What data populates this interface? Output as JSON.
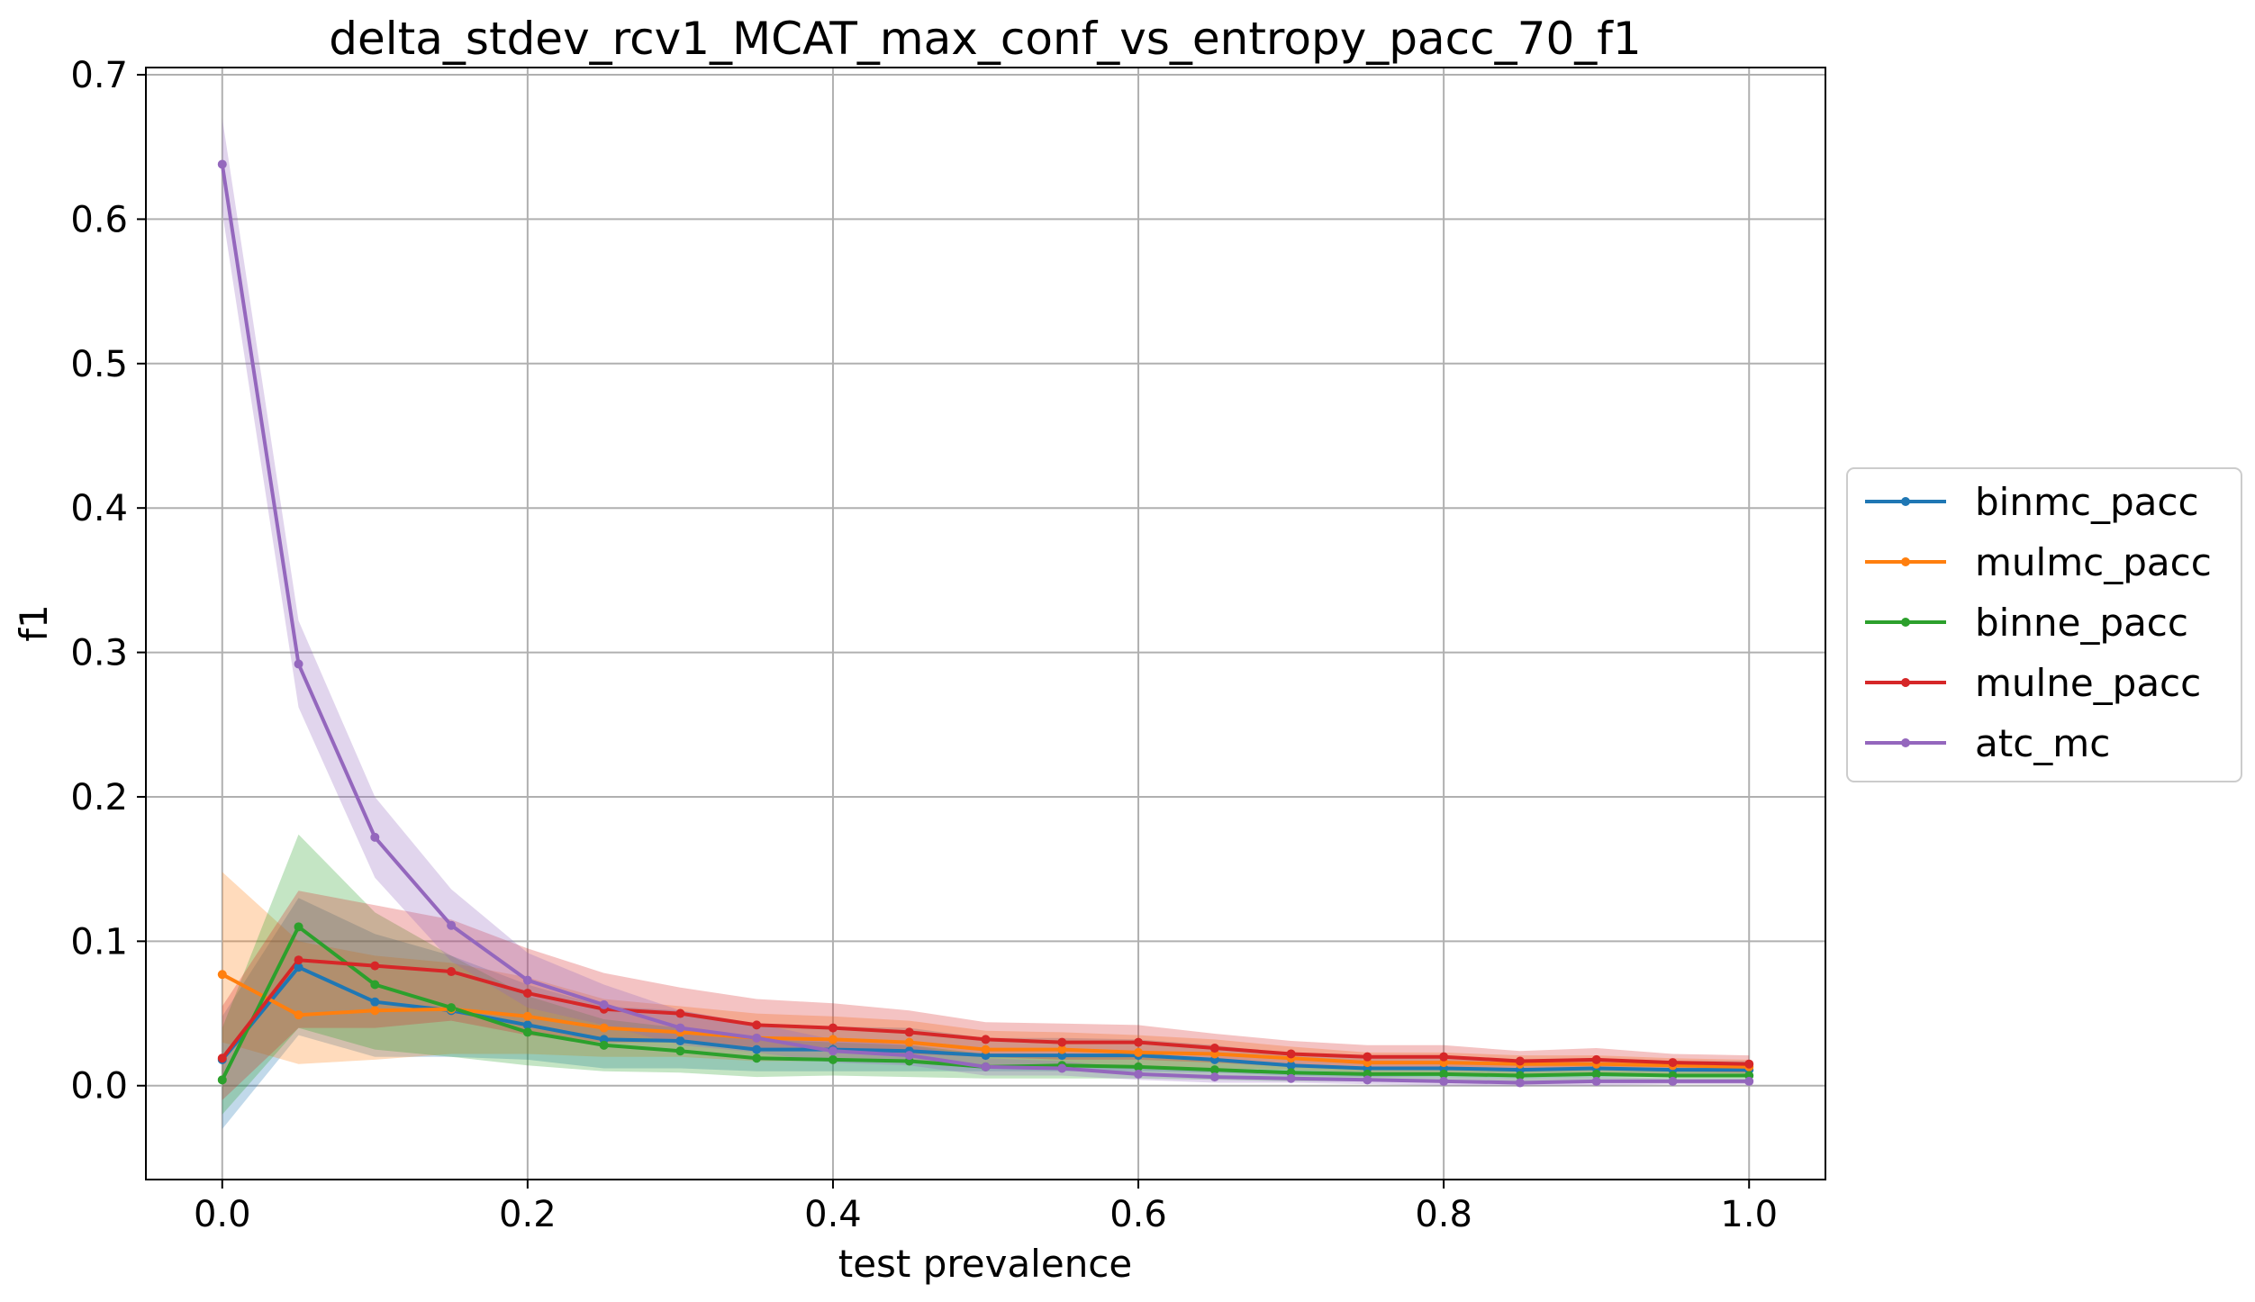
{
  "chart_data": {
    "type": "line",
    "title": "delta_stdev_rcv1_MCAT_max_conf_vs_entropy_pacc_70_f1",
    "xlabel": "test prevalence",
    "ylabel": "f1",
    "xlim": [
      -0.05,
      1.05
    ],
    "ylim": [
      -0.065,
      0.705
    ],
    "xticks": [
      0.0,
      0.2,
      0.4,
      0.6,
      0.8,
      1.0
    ],
    "xtick_labels": [
      "0.0",
      "0.2",
      "0.4",
      "0.6",
      "0.8",
      "1.0"
    ],
    "yticks": [
      0.0,
      0.1,
      0.2,
      0.3,
      0.4,
      0.5,
      0.6,
      0.7
    ],
    "ytick_labels": [
      "0.0",
      "0.1",
      "0.2",
      "0.3",
      "0.4",
      "0.5",
      "0.6",
      "0.7"
    ],
    "grid": true,
    "legend_position": "center-right, outside plot",
    "x": [
      0.0,
      0.05,
      0.1,
      0.15,
      0.2,
      0.25,
      0.3,
      0.35,
      0.4,
      0.45,
      0.5,
      0.55,
      0.6,
      0.65,
      0.7,
      0.75,
      0.8,
      0.85,
      0.9,
      0.95,
      1.0
    ],
    "series": [
      {
        "name": "binmc_pacc",
        "color": "#1f77b4",
        "values": [
          0.018,
          0.082,
          0.058,
          0.052,
          0.042,
          0.032,
          0.031,
          0.025,
          0.025,
          0.024,
          0.021,
          0.021,
          0.021,
          0.018,
          0.014,
          0.012,
          0.012,
          0.011,
          0.012,
          0.011,
          0.011
        ],
        "upper": [
          0.048,
          0.13,
          0.105,
          0.09,
          0.07,
          0.055,
          0.052,
          0.042,
          0.041,
          0.04,
          0.033,
          0.033,
          0.032,
          0.028,
          0.022,
          0.019,
          0.019,
          0.018,
          0.019,
          0.017,
          0.017
        ],
        "lower": [
          -0.03,
          0.035,
          0.02,
          0.02,
          0.018,
          0.012,
          0.012,
          0.01,
          0.01,
          0.01,
          0.01,
          0.01,
          0.01,
          0.009,
          0.007,
          0.006,
          0.006,
          0.005,
          0.006,
          0.006,
          0.006
        ]
      },
      {
        "name": "mulmc_pacc",
        "color": "#ff7f0e",
        "values": [
          0.077,
          0.049,
          0.052,
          0.053,
          0.048,
          0.04,
          0.037,
          0.033,
          0.032,
          0.03,
          0.025,
          0.025,
          0.023,
          0.022,
          0.019,
          0.016,
          0.016,
          0.015,
          0.015,
          0.014,
          0.013
        ],
        "upper": [
          0.148,
          0.1,
          0.09,
          0.085,
          0.075,
          0.06,
          0.055,
          0.05,
          0.048,
          0.045,
          0.038,
          0.037,
          0.035,
          0.032,
          0.027,
          0.023,
          0.023,
          0.021,
          0.021,
          0.019,
          0.018
        ],
        "lower": [
          0.03,
          0.015,
          0.018,
          0.022,
          0.022,
          0.02,
          0.02,
          0.017,
          0.017,
          0.016,
          0.013,
          0.013,
          0.012,
          0.012,
          0.011,
          0.009,
          0.009,
          0.008,
          0.008,
          0.008,
          0.008
        ]
      },
      {
        "name": "binne_pacc",
        "color": "#2ca02c",
        "values": [
          0.004,
          0.11,
          0.07,
          0.054,
          0.037,
          0.028,
          0.024,
          0.019,
          0.018,
          0.017,
          0.013,
          0.014,
          0.013,
          0.011,
          0.009,
          0.008,
          0.008,
          0.007,
          0.008,
          0.007,
          0.007
        ],
        "upper": [
          0.04,
          0.174,
          0.12,
          0.09,
          0.062,
          0.046,
          0.04,
          0.032,
          0.03,
          0.028,
          0.022,
          0.022,
          0.021,
          0.018,
          0.015,
          0.013,
          0.013,
          0.012,
          0.013,
          0.012,
          0.012
        ],
        "lower": [
          -0.02,
          0.04,
          0.025,
          0.02,
          0.014,
          0.01,
          0.009,
          0.006,
          0.007,
          0.006,
          0.005,
          0.005,
          0.005,
          0.004,
          0.003,
          0.003,
          0.003,
          0.003,
          0.003,
          0.003,
          0.003
        ]
      },
      {
        "name": "mulne_pacc",
        "color": "#d62728",
        "values": [
          0.019,
          0.087,
          0.083,
          0.079,
          0.064,
          0.053,
          0.05,
          0.042,
          0.04,
          0.037,
          0.032,
          0.03,
          0.03,
          0.026,
          0.022,
          0.02,
          0.02,
          0.017,
          0.018,
          0.016,
          0.015
        ],
        "upper": [
          0.055,
          0.135,
          0.125,
          0.115,
          0.095,
          0.078,
          0.068,
          0.06,
          0.057,
          0.052,
          0.044,
          0.043,
          0.042,
          0.036,
          0.031,
          0.028,
          0.028,
          0.024,
          0.026,
          0.022,
          0.021
        ],
        "lower": [
          -0.01,
          0.04,
          0.04,
          0.045,
          0.035,
          0.03,
          0.03,
          0.024,
          0.024,
          0.022,
          0.02,
          0.018,
          0.018,
          0.016,
          0.013,
          0.012,
          0.012,
          0.01,
          0.011,
          0.01,
          0.009
        ]
      },
      {
        "name": "atc_mc",
        "color": "#9467bd",
        "values": [
          0.638,
          0.292,
          0.172,
          0.111,
          0.073,
          0.056,
          0.04,
          0.033,
          0.024,
          0.021,
          0.013,
          0.012,
          0.008,
          0.006,
          0.005,
          0.004,
          0.003,
          0.002,
          0.003,
          0.003,
          0.003
        ],
        "upper": [
          0.67,
          0.322,
          0.2,
          0.136,
          0.092,
          0.07,
          0.052,
          0.043,
          0.032,
          0.028,
          0.019,
          0.017,
          0.012,
          0.01,
          0.008,
          0.007,
          0.006,
          0.005,
          0.006,
          0.005,
          0.005
        ],
        "lower": [
          0.605,
          0.262,
          0.144,
          0.086,
          0.054,
          0.042,
          0.028,
          0.023,
          0.016,
          0.014,
          0.007,
          0.007,
          0.004,
          0.002,
          0.002,
          0.001,
          0.0,
          0.0,
          0.0,
          0.001,
          0.001
        ]
      }
    ]
  }
}
